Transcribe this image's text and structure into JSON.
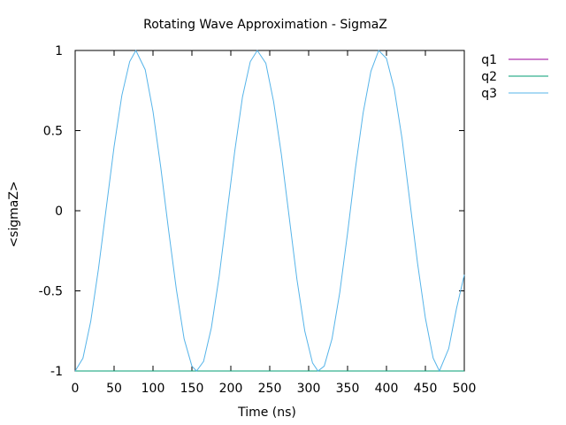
{
  "chart_data": {
    "type": "line",
    "title": "Rotating Wave Approximation - SigmaZ",
    "xlabel": "Time (ns)",
    "ylabel": "<sigmaZ>",
    "xlim": [
      0,
      500
    ],
    "ylim": [
      -1,
      1
    ],
    "x_ticks": [
      0,
      50,
      100,
      150,
      200,
      250,
      300,
      350,
      400,
      450,
      500
    ],
    "x_tick_labels": [
      "0",
      "50",
      "100",
      "150",
      "200",
      "250",
      "300",
      "350",
      "400",
      "450",
      "500"
    ],
    "y_ticks": [
      1,
      0.5,
      0,
      -0.5,
      -1
    ],
    "y_tick_labels": [
      "1",
      "0.5",
      "0",
      "-0.5",
      "-1"
    ],
    "grid": false,
    "legend_position": "outside-right-top",
    "series": [
      {
        "name": "q1",
        "color": "#990099",
        "x": [
          0,
          500
        ],
        "y": [
          -1,
          -1
        ]
      },
      {
        "name": "q2",
        "color": "#009e73",
        "x": [
          0,
          500
        ],
        "y": [
          -1,
          -1
        ]
      },
      {
        "name": "q3",
        "color": "#56b4e9",
        "x": [
          0,
          10,
          20,
          30,
          40,
          50,
          60,
          70,
          78,
          90,
          100,
          110,
          120,
          130,
          140,
          150,
          156,
          165,
          175,
          185,
          195,
          205,
          215,
          225,
          234,
          245,
          255,
          265,
          275,
          285,
          295,
          305,
          312,
          320,
          330,
          340,
          350,
          360,
          370,
          380,
          390,
          400,
          410,
          420,
          430,
          440,
          450,
          460,
          468,
          480,
          490,
          500
        ],
        "y": [
          -1.0,
          -0.92,
          -0.69,
          -0.36,
          0.02,
          0.4,
          0.72,
          0.93,
          1.0,
          0.88,
          0.62,
          0.27,
          -0.12,
          -0.49,
          -0.8,
          -0.97,
          -1.0,
          -0.94,
          -0.73,
          -0.41,
          -0.02,
          0.37,
          0.71,
          0.93,
          1.0,
          0.92,
          0.68,
          0.35,
          -0.04,
          -0.43,
          -0.75,
          -0.95,
          -1.0,
          -0.97,
          -0.8,
          -0.51,
          -0.14,
          0.26,
          0.61,
          0.87,
          1.0,
          0.95,
          0.76,
          0.45,
          0.06,
          -0.33,
          -0.67,
          -0.92,
          -1.0,
          -0.86,
          -0.61,
          -0.4
        ]
      }
    ]
  }
}
